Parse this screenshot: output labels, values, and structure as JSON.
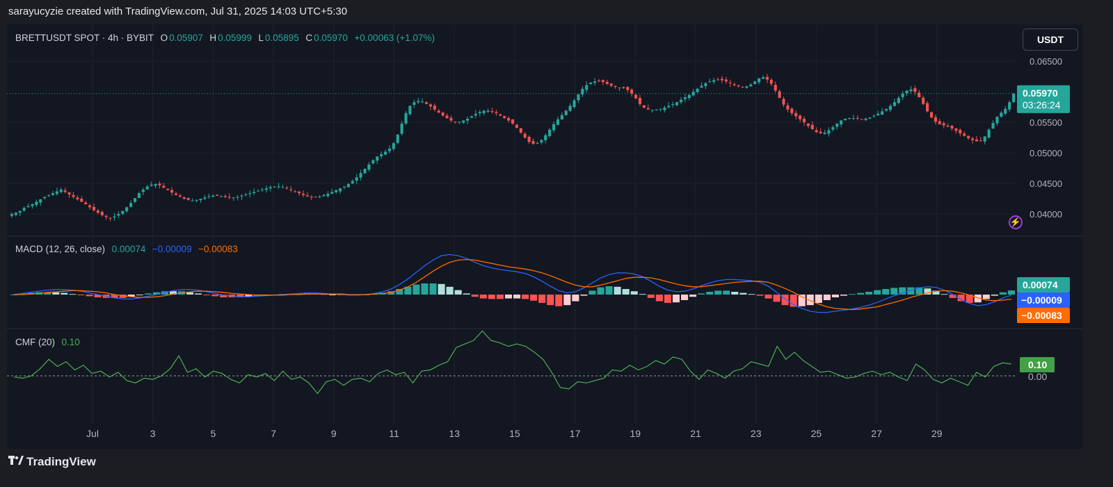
{
  "caption": "sarayucyzie created with TradingView.com, Jul 31, 2025 14:03 UTC+5:30",
  "footer_logo": "TradingView",
  "currency_button": "USDT",
  "header": {
    "symbol": "BRETTUSDT SPOT · 4h · BYBIT",
    "o_label": "O",
    "o": "0.05907",
    "h_label": "H",
    "h": "0.05999",
    "l_label": "L",
    "l": "0.05895",
    "c_label": "C",
    "c": "0.05970",
    "change": "+0.00063 (+1.07%)"
  },
  "macd_legend": {
    "label": "MACD (12, 26, close)",
    "hist": "0.00074",
    "macd": "−0.00009",
    "signal": "−0.00083"
  },
  "cmf_legend": {
    "label": "CMF (20)",
    "value": "0.10"
  },
  "price_badge": {
    "price": "0.05970",
    "countdown": "03:26:24"
  },
  "macd_badges": {
    "hist": "0.00074",
    "macd": "−0.00009",
    "signal": "−0.00083"
  },
  "cmf_badges": {
    "value": "0.10",
    "zero": "0.00"
  },
  "colors": {
    "up": "#26a69a",
    "down": "#ef5350",
    "macd": "#2962ff",
    "signal": "#ff6d00",
    "cmf": "#4caf50",
    "hist_up_strong": "#26a69a",
    "hist_up_weak": "#b2dfdb",
    "hist_dn_strong": "#ff5252",
    "hist_dn_weak": "#ffcdd2"
  },
  "chart_data": [
    {
      "type": "candlestick",
      "title": "BRETTUSDT SPOT · 4h · BYBIT",
      "y_ticks": [
        "0.06500",
        "0.05500",
        "0.05000",
        "0.04500",
        "0.04000"
      ],
      "ylim": [
        0.0375,
        0.0665
      ],
      "x_ticks": [
        "Jul",
        "3",
        "5",
        "7",
        "9",
        "11",
        "13",
        "15",
        "17",
        "19",
        "21",
        "23",
        "25",
        "27",
        "29"
      ],
      "last_close": 0.0597,
      "closes": [
        0.04,
        0.0402,
        0.0405,
        0.041,
        0.0413,
        0.0416,
        0.042,
        0.0424,
        0.0428,
        0.0431,
        0.0434,
        0.0437,
        0.044,
        0.0436,
        0.0432,
        0.0428,
        0.0424,
        0.042,
        0.0416,
        0.0411,
        0.0406,
        0.0402,
        0.0398,
        0.0395,
        0.0393,
        0.0396,
        0.04,
        0.0405,
        0.0411,
        0.0418,
        0.0426,
        0.0434,
        0.044,
        0.0445,
        0.0448,
        0.0449,
        0.0447,
        0.0443,
        0.0439,
        0.0435,
        0.0431,
        0.0428,
        0.0425,
        0.0423,
        0.0422,
        0.0423,
        0.0425,
        0.0427,
        0.0429,
        0.043,
        0.043,
        0.0429,
        0.0428,
        0.0427,
        0.0427,
        0.0428,
        0.043,
        0.0432,
        0.0434,
        0.0436,
        0.0438,
        0.044,
        0.0442,
        0.0444,
        0.0445,
        0.0445,
        0.0444,
        0.0442,
        0.0439,
        0.0436,
        0.0434,
        0.0431,
        0.0429,
        0.0428,
        0.0428,
        0.0429,
        0.0431,
        0.0433,
        0.0436,
        0.0439,
        0.0442,
        0.0445,
        0.0449,
        0.0454,
        0.046,
        0.0467,
        0.0474,
        0.0481,
        0.0488,
        0.0494,
        0.0498,
        0.0502,
        0.0507,
        0.0516,
        0.053,
        0.0548,
        0.0565,
        0.0577,
        0.0583,
        0.0585,
        0.0584,
        0.058,
        0.0576,
        0.0571,
        0.0566,
        0.0561,
        0.0557,
        0.0553,
        0.0551,
        0.0551,
        0.0553,
        0.0556,
        0.056,
        0.0564,
        0.0567,
        0.0569,
        0.0569,
        0.0568,
        0.0565,
        0.0561,
        0.0557,
        0.0553,
        0.0548,
        0.0541,
        0.0533,
        0.0525,
        0.0518,
        0.0515,
        0.0516,
        0.0521,
        0.0529,
        0.0538,
        0.0547,
        0.0555,
        0.0562,
        0.0569,
        0.0577,
        0.0586,
        0.0596,
        0.0605,
        0.0611,
        0.0615,
        0.0617,
        0.0618,
        0.0616,
        0.0613,
        0.061,
        0.0608,
        0.0607,
        0.0606,
        0.0603,
        0.0597,
        0.0589,
        0.058,
        0.0574,
        0.0571,
        0.057,
        0.0571,
        0.0572,
        0.0574,
        0.0577,
        0.058,
        0.0583,
        0.0587,
        0.0591,
        0.0595,
        0.06,
        0.0605,
        0.061,
        0.0614,
        0.0617,
        0.0619,
        0.062,
        0.0619,
        0.0617,
        0.0614,
        0.0611,
        0.0609,
        0.0608,
        0.0609,
        0.0612,
        0.0617,
        0.0622,
        0.0624,
        0.062,
        0.0613,
        0.0602,
        0.059,
        0.0579,
        0.0571,
        0.0565,
        0.056,
        0.0555,
        0.055,
        0.0544,
        0.0539,
        0.0534,
        0.0532,
        0.0533,
        0.0537,
        0.0542,
        0.0548,
        0.0553,
        0.0556,
        0.0557,
        0.0557,
        0.0556,
        0.0555,
        0.0556,
        0.0558,
        0.0561,
        0.0564,
        0.0568,
        0.0572,
        0.0577,
        0.0583,
        0.059,
        0.0597,
        0.0602,
        0.0604,
        0.06,
        0.0591,
        0.058,
        0.0568,
        0.0558,
        0.0551,
        0.0547,
        0.0545,
        0.0543,
        0.054,
        0.0536,
        0.0532,
        0.0528,
        0.0524,
        0.0521,
        0.0519,
        0.052,
        0.0527,
        0.0538,
        0.0549,
        0.0559,
        0.0566,
        0.0572,
        0.0583,
        0.0597
      ]
    },
    {
      "type": "line",
      "title": "MACD (12, 26, close)",
      "series": [
        {
          "name": "macd",
          "values": [
            0.0,
            0.0002,
            0.0004,
            0.0006,
            0.0008,
            0.0009,
            0.0009,
            0.0008,
            0.0006,
            0.0003,
            0.0,
            -0.0003,
            -0.0006,
            -0.0008,
            -0.0008,
            -0.0006,
            -0.0003,
            0.0,
            0.0004,
            0.0007,
            0.0009,
            0.0009,
            0.0008,
            0.0005,
            0.0002,
            -0.0001,
            -0.0003,
            -0.0004,
            -0.0004,
            -0.0003,
            -0.0002,
            -0.0001,
            0.0,
            0.0001,
            0.0002,
            0.0003,
            0.0003,
            0.0002,
            0.0001,
            0.0,
            -0.0001,
            -0.0001,
            0.0,
            0.0002,
            0.0005,
            0.001,
            0.0018,
            0.0028,
            0.004,
            0.0052,
            0.0062,
            0.007,
            0.0072,
            0.007,
            0.0065,
            0.0058,
            0.0052,
            0.0048,
            0.0045,
            0.0043,
            0.0041,
            0.0038,
            0.0032,
            0.0024,
            0.0015,
            0.0007,
            0.0003,
            0.0005,
            0.0012,
            0.0021,
            0.003,
            0.0036,
            0.0039,
            0.0039,
            0.0037,
            0.0032,
            0.0024,
            0.0015,
            0.0008,
            0.0005,
            0.0006,
            0.001,
            0.0016,
            0.0021,
            0.0025,
            0.0027,
            0.0027,
            0.0026,
            0.0025,
            0.0022,
            0.0015,
            0.0004,
            -0.0008,
            -0.0018,
            -0.0025,
            -0.003,
            -0.0032,
            -0.0032,
            -0.003,
            -0.0028,
            -0.0026,
            -0.0023,
            -0.0019,
            -0.0014,
            -0.0008,
            -0.0002,
            0.0003,
            0.0008,
            0.0012,
            0.0014,
            0.0013,
            0.0008,
            0.0,
            -0.0009,
            -0.0016,
            -0.002,
            -0.0018,
            -0.0013,
            -0.0006,
            -9e-05
          ]
        },
        {
          "name": "signal",
          "values": [
            0.0,
            0.0,
            0.0001,
            0.0002,
            0.0004,
            0.0005,
            0.0006,
            0.0007,
            0.0007,
            0.0006,
            0.0005,
            0.0003,
            0.0,
            -0.0002,
            -0.0004,
            -0.0005,
            -0.0005,
            -0.0004,
            -0.0002,
            0.0001,
            0.0003,
            0.0005,
            0.0006,
            0.0006,
            0.0005,
            0.0004,
            0.0002,
            0.0001,
            0.0,
            -0.0001,
            -0.0001,
            -0.0001,
            -0.0001,
            0.0,
            0.0,
            0.0001,
            0.0001,
            0.0001,
            0.0001,
            0.0001,
            0.0,
            0.0,
            0.0,
            0.0001,
            0.0002,
            0.0004,
            0.0008,
            0.0014,
            0.0022,
            0.0032,
            0.0042,
            0.0051,
            0.0058,
            0.0062,
            0.0063,
            0.0062,
            0.0059,
            0.0056,
            0.0053,
            0.005,
            0.0048,
            0.0046,
            0.0043,
            0.0039,
            0.0034,
            0.0028,
            0.0022,
            0.0017,
            0.0014,
            0.0014,
            0.0017,
            0.0021,
            0.0025,
            0.0029,
            0.0031,
            0.0031,
            0.003,
            0.0027,
            0.0023,
            0.0019,
            0.0016,
            0.0014,
            0.0014,
            0.0016,
            0.0018,
            0.002,
            0.0022,
            0.0023,
            0.0024,
            0.0024,
            0.0022,
            0.0017,
            0.0011,
            0.0004,
            -0.0004,
            -0.0011,
            -0.0017,
            -0.0022,
            -0.0025,
            -0.0026,
            -0.0027,
            -0.0026,
            -0.0024,
            -0.0022,
            -0.0018,
            -0.0014,
            -0.001,
            -0.0005,
            -0.0001,
            0.0003,
            0.0006,
            0.0007,
            0.0006,
            0.0003,
            -0.0001,
            -0.0006,
            -0.001,
            -0.0011,
            -0.001,
            -0.00083
          ]
        }
      ],
      "histogram_last": 0.00074
    },
    {
      "type": "line",
      "title": "CMF (20)",
      "series": [
        {
          "name": "CMF",
          "values": [
            -0.01,
            -0.02,
            0.0,
            0.06,
            0.14,
            0.08,
            0.12,
            0.05,
            0.09,
            0.02,
            0.04,
            -0.01,
            0.03,
            -0.04,
            -0.06,
            -0.02,
            -0.03,
            0.0,
            0.06,
            0.17,
            0.03,
            0.06,
            -0.01,
            0.04,
            0.02,
            -0.03,
            -0.06,
            0.01,
            -0.01,
            0.02,
            -0.04,
            0.04,
            -0.03,
            -0.01,
            -0.06,
            -0.15,
            -0.05,
            -0.03,
            -0.08,
            -0.03,
            -0.02,
            -0.05,
            0.02,
            0.05,
            0.01,
            0.03,
            -0.06,
            0.04,
            0.05,
            0.09,
            0.12,
            0.24,
            0.27,
            0.3,
            0.38,
            0.3,
            0.28,
            0.25,
            0.27,
            0.25,
            0.2,
            0.14,
            0.03,
            -0.1,
            -0.11,
            -0.05,
            -0.06,
            -0.04,
            -0.02,
            0.05,
            0.04,
            0.09,
            0.05,
            0.08,
            0.13,
            0.1,
            0.16,
            0.14,
            0.04,
            -0.03,
            0.05,
            0.02,
            -0.02,
            0.04,
            0.06,
            0.12,
            0.1,
            0.08,
            0.25,
            0.14,
            0.2,
            0.13,
            0.08,
            0.03,
            0.04,
            0.01,
            -0.02,
            -0.01,
            0.02,
            0.04,
            0.01,
            0.03,
            -0.01,
            -0.04,
            0.1,
            0.05,
            -0.03,
            -0.06,
            -0.02,
            -0.05,
            -0.08,
            0.03,
            -0.01,
            0.08,
            0.11,
            0.1
          ]
        }
      ],
      "zero_line": 0.0
    }
  ]
}
